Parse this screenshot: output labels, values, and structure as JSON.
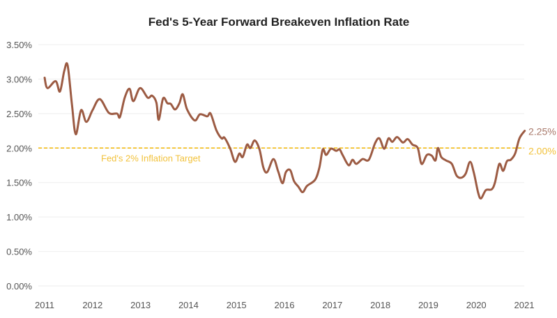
{
  "chart_data": {
    "type": "line",
    "title": "Fed's 5-Year Forward Breakeven Inflation Rate",
    "xlabel": "",
    "ylabel": "",
    "xlim": [
      2011,
      2021
    ],
    "ylim": [
      0,
      3.5
    ],
    "grid": "horizontal",
    "x_ticks": [
      "2011",
      "2012",
      "2013",
      "2014",
      "2015",
      "2016",
      "2017",
      "2018",
      "2019",
      "2020",
      "2021"
    ],
    "y_ticks": [
      "0.00%",
      "0.50%",
      "1.00%",
      "1.50%",
      "2.00%",
      "2.50%",
      "3.00%",
      "3.50%"
    ],
    "colors": {
      "series": "#9c5b43",
      "target": "#f0b400",
      "target_label": "#f2c23c",
      "end_label": "#a8786a"
    },
    "series": [
      {
        "x": [
          2011.0,
          2011.06,
          2011.23,
          2011.32,
          2011.41,
          2011.48,
          2011.57,
          2011.65,
          2011.76,
          2011.87,
          2012.0,
          2012.15,
          2012.34,
          2012.51,
          2012.57,
          2012.67,
          2012.77,
          2012.85,
          2012.99,
          2013.15,
          2013.24,
          2013.33,
          2013.38,
          2013.47,
          2013.56,
          2013.63,
          2013.72,
          2013.81,
          2013.88,
          2013.97,
          2014.13,
          2014.24,
          2014.39,
          2014.46,
          2014.58,
          2014.69,
          2014.75,
          2014.87,
          2014.97,
          2015.06,
          2015.13,
          2015.22,
          2015.29,
          2015.38,
          2015.48,
          2015.56,
          2015.64,
          2015.77,
          2015.87,
          2015.96,
          2016.03,
          2016.12,
          2016.2,
          2016.29,
          2016.38,
          2016.47,
          2016.64,
          2016.73,
          2016.8,
          2016.87,
          2016.97,
          2017.08,
          2017.15,
          2017.22,
          2017.34,
          2017.42,
          2017.5,
          2017.63,
          2017.76,
          2017.89,
          2017.98,
          2018.08,
          2018.17,
          2018.25,
          2018.35,
          2018.47,
          2018.57,
          2018.67,
          2018.78,
          2018.86,
          2018.97,
          2019.07,
          2019.15,
          2019.2,
          2019.27,
          2019.37,
          2019.49,
          2019.59,
          2019.69,
          2019.78,
          2019.87,
          2019.95,
          2020.04,
          2020.1,
          2020.2,
          2020.32,
          2020.39,
          2020.48,
          2020.56,
          2020.64,
          2020.72,
          2020.81,
          2020.9,
          2021.01
        ],
        "values": [
          3.02,
          2.87,
          2.97,
          2.82,
          3.12,
          3.2,
          2.63,
          2.2,
          2.55,
          2.38,
          2.55,
          2.71,
          2.51,
          2.5,
          2.45,
          2.73,
          2.86,
          2.68,
          2.87,
          2.73,
          2.76,
          2.66,
          2.41,
          2.72,
          2.65,
          2.64,
          2.56,
          2.65,
          2.78,
          2.56,
          2.4,
          2.49,
          2.46,
          2.5,
          2.26,
          2.14,
          2.15,
          1.99,
          1.8,
          1.92,
          1.87,
          2.05,
          2.0,
          2.11,
          1.98,
          1.72,
          1.65,
          1.84,
          1.66,
          1.49,
          1.65,
          1.68,
          1.52,
          1.44,
          1.36,
          1.45,
          1.54,
          1.72,
          1.98,
          1.9,
          1.99,
          1.96,
          1.98,
          1.89,
          1.75,
          1.83,
          1.77,
          1.84,
          1.83,
          2.07,
          2.14,
          1.99,
          2.14,
          2.09,
          2.16,
          2.08,
          2.13,
          2.05,
          2.0,
          1.77,
          1.9,
          1.89,
          1.82,
          2.0,
          1.87,
          1.82,
          1.77,
          1.6,
          1.57,
          1.63,
          1.8,
          1.64,
          1.35,
          1.27,
          1.39,
          1.4,
          1.5,
          1.77,
          1.67,
          1.81,
          1.83,
          1.92,
          2.14,
          2.25
        ]
      }
    ],
    "reference_line": {
      "value": 2.0,
      "label": "Fed's 2% Inflation Target",
      "end_label": "2.00%"
    },
    "end_label": "2.25%"
  }
}
